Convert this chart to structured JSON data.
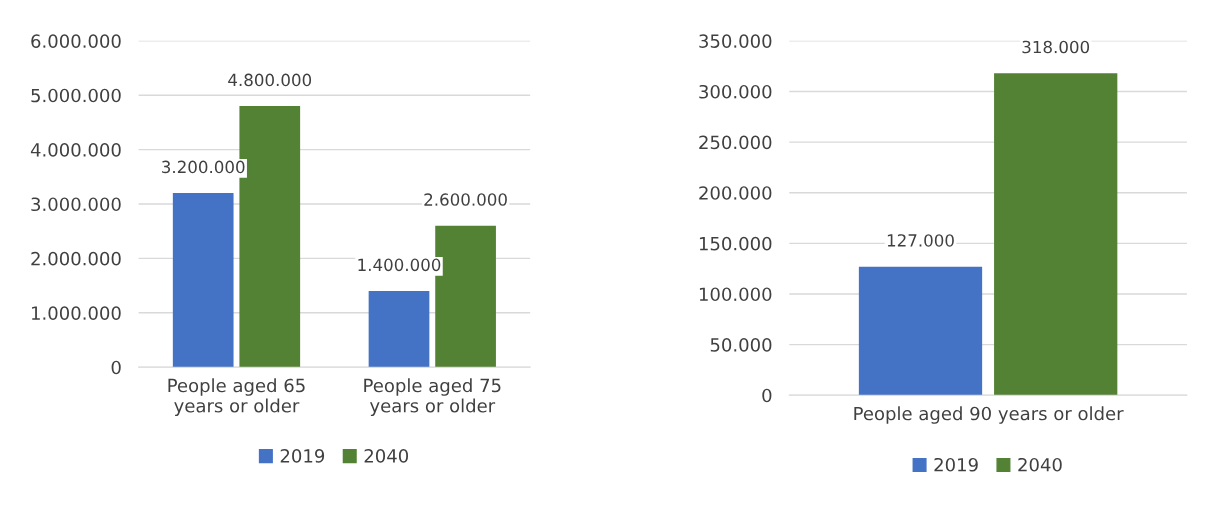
{
  "chart_data": [
    {
      "type": "bar",
      "categories": [
        "People aged 65 years or older",
        "People aged 75 years or older"
      ],
      "series": [
        {
          "name": "2019",
          "color": "#4472c4",
          "values": [
            3200000,
            1400000
          ],
          "value_labels": [
            "3.200.000",
            "1.400.000"
          ]
        },
        {
          "name": "2040",
          "color": "#548235",
          "values": [
            4800000,
            2600000
          ],
          "value_labels": [
            "4.800.000",
            "2.600.000"
          ]
        }
      ],
      "ylim": [
        0,
        6000000
      ],
      "yticks": [
        {
          "value": 0,
          "label": "0"
        },
        {
          "value": 1000000,
          "label": "1.000.000"
        },
        {
          "value": 2000000,
          "label": "2.000.000"
        },
        {
          "value": 3000000,
          "label": "3.000.000"
        },
        {
          "value": 4000000,
          "label": "4.000.000"
        },
        {
          "value": 5000000,
          "label": "5.000.000"
        },
        {
          "value": 6000000,
          "label": "6.000.000"
        }
      ],
      "grid": "y",
      "legend": "bottom"
    },
    {
      "type": "bar",
      "categories": [
        "People aged 90 years or older"
      ],
      "series": [
        {
          "name": "2019",
          "color": "#4472c4",
          "values": [
            127000
          ],
          "value_labels": [
            "127.000"
          ]
        },
        {
          "name": "2040",
          "color": "#548235",
          "values": [
            318000
          ],
          "value_labels": [
            "318.000"
          ]
        }
      ],
      "ylim": [
        0,
        350000
      ],
      "yticks": [
        {
          "value": 0,
          "label": "0"
        },
        {
          "value": 50000,
          "label": "50.000"
        },
        {
          "value": 100000,
          "label": "100.000"
        },
        {
          "value": 150000,
          "label": "150.000"
        },
        {
          "value": 200000,
          "label": "200.000"
        },
        {
          "value": 250000,
          "label": "250.000"
        },
        {
          "value": 300000,
          "label": "300.000"
        },
        {
          "value": 350000,
          "label": "350.000"
        }
      ],
      "grid": "y",
      "legend": "bottom"
    }
  ]
}
